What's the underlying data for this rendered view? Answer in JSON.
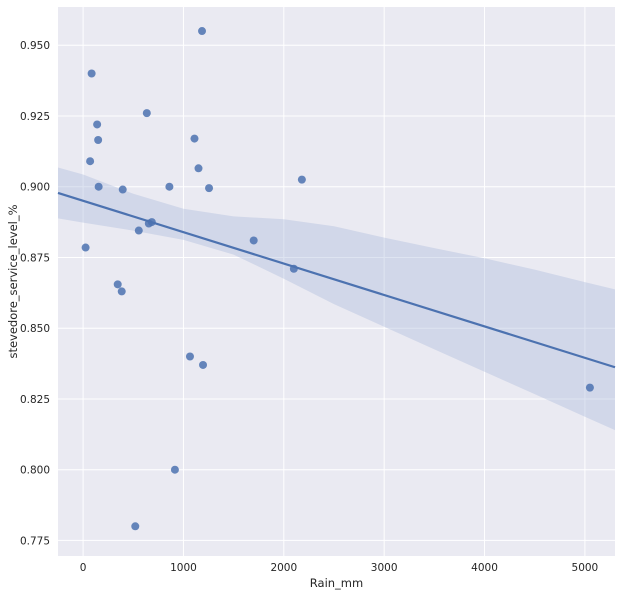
{
  "chart_data": {
    "type": "scatter",
    "title": "",
    "xlabel": "Rain_mm",
    "ylabel": "stevedore_service_level_%",
    "xlim": [
      -250,
      5300
    ],
    "ylim": [
      0.7695,
      0.9635
    ],
    "x_ticks": [
      0,
      1000,
      2000,
      3000,
      4000,
      5000
    ],
    "x_tick_labels": [
      "0",
      "1000",
      "2000",
      "3000",
      "4000",
      "5000"
    ],
    "y_ticks": [
      0.775,
      0.8,
      0.825,
      0.85,
      0.875,
      0.9,
      0.925,
      0.95
    ],
    "y_tick_labels": [
      "0.775",
      "0.800",
      "0.825",
      "0.850",
      "0.875",
      "0.900",
      "0.925",
      "0.950"
    ],
    "grid": true,
    "background_color": "#EAEAF2",
    "grid_color": "#FFFFFF",
    "point_color": "#4C72B0",
    "line_color": "#4C72B0",
    "ci_color": "#A9B9DA",
    "points": [
      {
        "x": 25,
        "y": 0.8785
      },
      {
        "x": 70,
        "y": 0.909
      },
      {
        "x": 85,
        "y": 0.94
      },
      {
        "x": 140,
        "y": 0.922
      },
      {
        "x": 150,
        "y": 0.9165
      },
      {
        "x": 155,
        "y": 0.9
      },
      {
        "x": 345,
        "y": 0.8655
      },
      {
        "x": 385,
        "y": 0.863
      },
      {
        "x": 395,
        "y": 0.899
      },
      {
        "x": 520,
        "y": 0.78
      },
      {
        "x": 555,
        "y": 0.8845
      },
      {
        "x": 635,
        "y": 0.926
      },
      {
        "x": 655,
        "y": 0.887
      },
      {
        "x": 685,
        "y": 0.8875
      },
      {
        "x": 860,
        "y": 0.9
      },
      {
        "x": 915,
        "y": 0.8
      },
      {
        "x": 1065,
        "y": 0.84
      },
      {
        "x": 1110,
        "y": 0.917
      },
      {
        "x": 1150,
        "y": 0.9065
      },
      {
        "x": 1185,
        "y": 0.955
      },
      {
        "x": 1195,
        "y": 0.837
      },
      {
        "x": 1255,
        "y": 0.8995
      },
      {
        "x": 1700,
        "y": 0.881
      },
      {
        "x": 2100,
        "y": 0.871
      },
      {
        "x": 2180,
        "y": 0.9025
      },
      {
        "x": 5050,
        "y": 0.829
      }
    ],
    "regression": {
      "x": [
        -250,
        5300
      ],
      "y": [
        0.8978,
        0.8362
      ]
    },
    "confidence_band": {
      "x": [
        -250,
        0,
        500,
        1000,
        1500,
        2000,
        2500,
        3000,
        3500,
        4000,
        4500,
        5000,
        5300
      ],
      "upper": [
        0.9068,
        0.9043,
        0.8975,
        0.8922,
        0.8895,
        0.8885,
        0.886,
        0.882,
        0.8783,
        0.8747,
        0.8707,
        0.8663,
        0.8637
      ],
      "lower": [
        0.8888,
        0.8873,
        0.8845,
        0.8812,
        0.876,
        0.8675,
        0.8585,
        0.8505,
        0.8425,
        0.8346,
        0.8267,
        0.8187,
        0.814
      ]
    }
  }
}
